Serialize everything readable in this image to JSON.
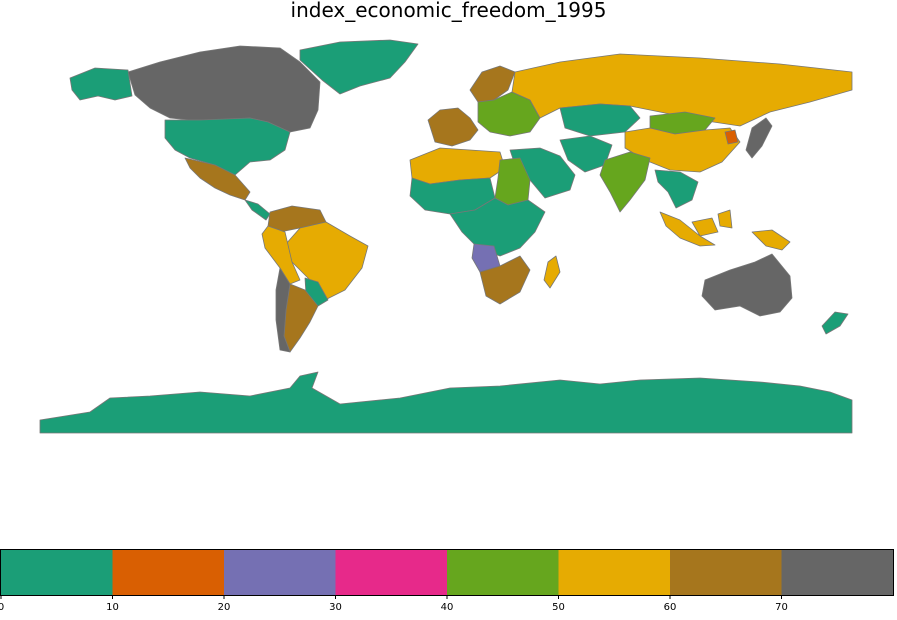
{
  "title": "index_economic_freedom_1995",
  "colorbar": {
    "min": 0,
    "max": 80,
    "segments": [
      {
        "from": 0,
        "to": 10,
        "color": "#1b9e77"
      },
      {
        "from": 10,
        "to": 20,
        "color": "#d95f02"
      },
      {
        "from": 20,
        "to": 30,
        "color": "#7570b3"
      },
      {
        "from": 30,
        "to": 40,
        "color": "#e7298a"
      },
      {
        "from": 40,
        "to": 50,
        "color": "#66a61e"
      },
      {
        "from": 50,
        "to": 60,
        "color": "#e6ab02"
      },
      {
        "from": 60,
        "to": 70,
        "color": "#a6761d"
      },
      {
        "from": 70,
        "to": 80,
        "color": "#666666"
      }
    ],
    "ticks": [
      "0",
      "10",
      "20",
      "30",
      "40",
      "50",
      "60",
      "70"
    ]
  },
  "map": {
    "background": "#ffffff",
    "border_color": "#777777",
    "regions": [
      {
        "name": "canada",
        "bin": "70"
      },
      {
        "name": "greenland",
        "bin": "0"
      },
      {
        "name": "alaska",
        "bin": "0"
      },
      {
        "name": "usa",
        "bin": "0"
      },
      {
        "name": "mexico",
        "bin": "60"
      },
      {
        "name": "central-america",
        "bin": "0"
      },
      {
        "name": "colombia-venezuela",
        "bin": "60"
      },
      {
        "name": "brazil",
        "bin": "50"
      },
      {
        "name": "peru-bolivia",
        "bin": "50"
      },
      {
        "name": "chile",
        "bin": "70"
      },
      {
        "name": "argentina",
        "bin": "60"
      },
      {
        "name": "uruguay-paraguay",
        "bin": "0"
      },
      {
        "name": "western-europe",
        "bin": "60"
      },
      {
        "name": "scandinavia",
        "bin": "60"
      },
      {
        "name": "eastern-europe",
        "bin": "40"
      },
      {
        "name": "russia",
        "bin": "50"
      },
      {
        "name": "kazakhstan",
        "bin": "0"
      },
      {
        "name": "mongolia",
        "bin": "40"
      },
      {
        "name": "china",
        "bin": "50"
      },
      {
        "name": "north-korea",
        "bin": "10"
      },
      {
        "name": "japan",
        "bin": "70"
      },
      {
        "name": "india",
        "bin": "40"
      },
      {
        "name": "middle-east",
        "bin": "0"
      },
      {
        "name": "iran-afghanistan",
        "bin": "0"
      },
      {
        "name": "north-africa",
        "bin": "50"
      },
      {
        "name": "sahel",
        "bin": "0"
      },
      {
        "name": "sudan",
        "bin": "40"
      },
      {
        "name": "central-africa",
        "bin": "0"
      },
      {
        "name": "angola",
        "bin": "20"
      },
      {
        "name": "southern-africa",
        "bin": "60"
      },
      {
        "name": "madagascar",
        "bin": "50"
      },
      {
        "name": "southeast-asia",
        "bin": "0"
      },
      {
        "name": "indonesia",
        "bin": "50"
      },
      {
        "name": "papua",
        "bin": "50"
      },
      {
        "name": "australia",
        "bin": "70"
      },
      {
        "name": "new-zealand",
        "bin": "0"
      },
      {
        "name": "antarctica",
        "bin": "0"
      }
    ]
  }
}
